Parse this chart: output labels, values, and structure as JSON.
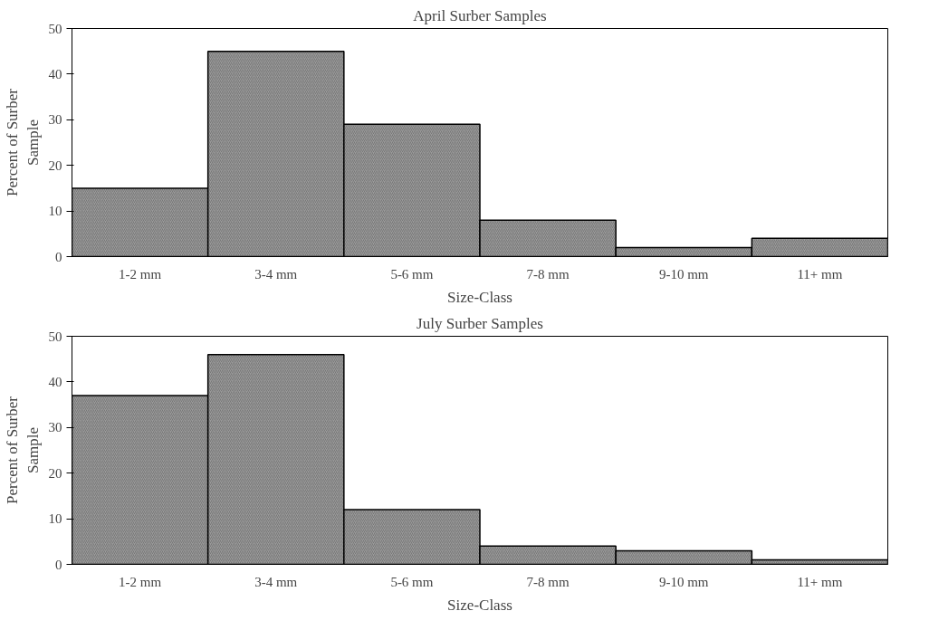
{
  "chart_data": [
    {
      "type": "bar",
      "title": "April Surber Samples",
      "xlabel": "Size-Class",
      "ylabel": "Percent of Surber Sample",
      "categories": [
        "1-2 mm",
        "3-4 mm",
        "5-6 mm",
        "7-8 mm",
        "9-10 mm",
        "11+ mm"
      ],
      "values": [
        15,
        45,
        29,
        8,
        2,
        4
      ],
      "color": "#9a9a9a",
      "ylim": [
        0,
        50
      ],
      "yticks": [
        0,
        10,
        20,
        30,
        40,
        50
      ],
      "grid": false
    },
    {
      "type": "bar",
      "title": "July Surber Samples",
      "xlabel": "Size-Class",
      "ylabel": "Percent of Surber Sample",
      "categories": [
        "1-2 mm",
        "3-4 mm",
        "5-6 mm",
        "7-8 mm",
        "9-10 mm",
        "11+ mm"
      ],
      "values": [
        37,
        46,
        12,
        4,
        3,
        1
      ],
      "color": "#9a9a9a",
      "ylim": [
        0,
        50
      ],
      "yticks": [
        0,
        10,
        20,
        30,
        40,
        50
      ],
      "grid": false
    }
  ]
}
